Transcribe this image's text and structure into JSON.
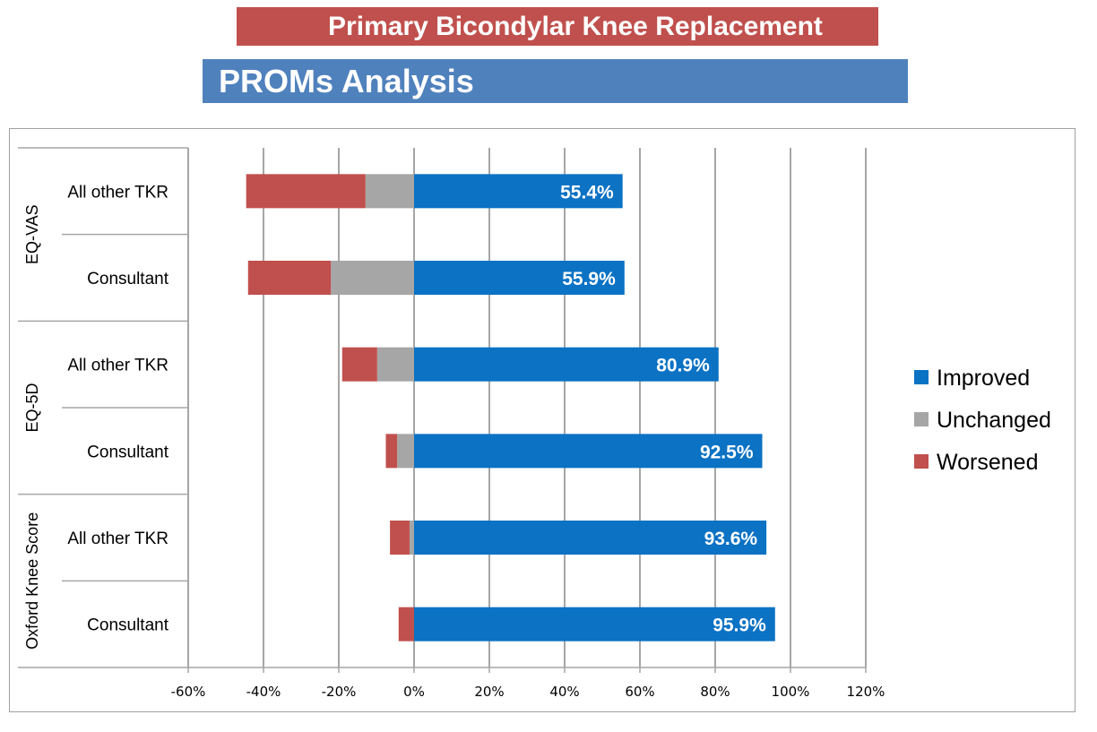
{
  "header": {
    "title": "Primary Bicondylar Knee Replacement",
    "subtitle": "PROMs Analysis"
  },
  "chart_data": {
    "type": "bar",
    "orientation": "horizontal",
    "stacked": true,
    "groups": [
      {
        "name": "EQ-VAS",
        "categories": [
          "All other TKR",
          "Consultant"
        ]
      },
      {
        "name": "EQ-5D",
        "categories": [
          "All other TKR",
          "Consultant"
        ]
      },
      {
        "name": "Oxford Knee Score",
        "categories": [
          "All other TKR",
          "Consultant"
        ]
      }
    ],
    "series": [
      {
        "name": "Improved",
        "color": "#0b72c4",
        "values": [
          55.4,
          55.9,
          80.9,
          92.5,
          93.6,
          95.9
        ],
        "labels": [
          "55.4%",
          "55.9%",
          "80.9%",
          "92.5%",
          "93.6%",
          "95.9%"
        ]
      },
      {
        "name": "Unchanged",
        "color": "#a6a6a6",
        "values": [
          -12.9,
          -22.1,
          -9.8,
          -4.5,
          -1.2,
          0
        ]
      },
      {
        "name": "Worsened",
        "color": "#c0504d",
        "values": [
          -31.7,
          -22.0,
          -9.3,
          -3.0,
          -5.2,
          -4.1
        ]
      }
    ],
    "xlim": [
      -60,
      120
    ],
    "xticks": [
      "-60%",
      "-40%",
      "-20%",
      "0%",
      "20%",
      "40%",
      "60%",
      "80%",
      "100%",
      "120%"
    ],
    "grid": "vertical",
    "legend": "right"
  }
}
